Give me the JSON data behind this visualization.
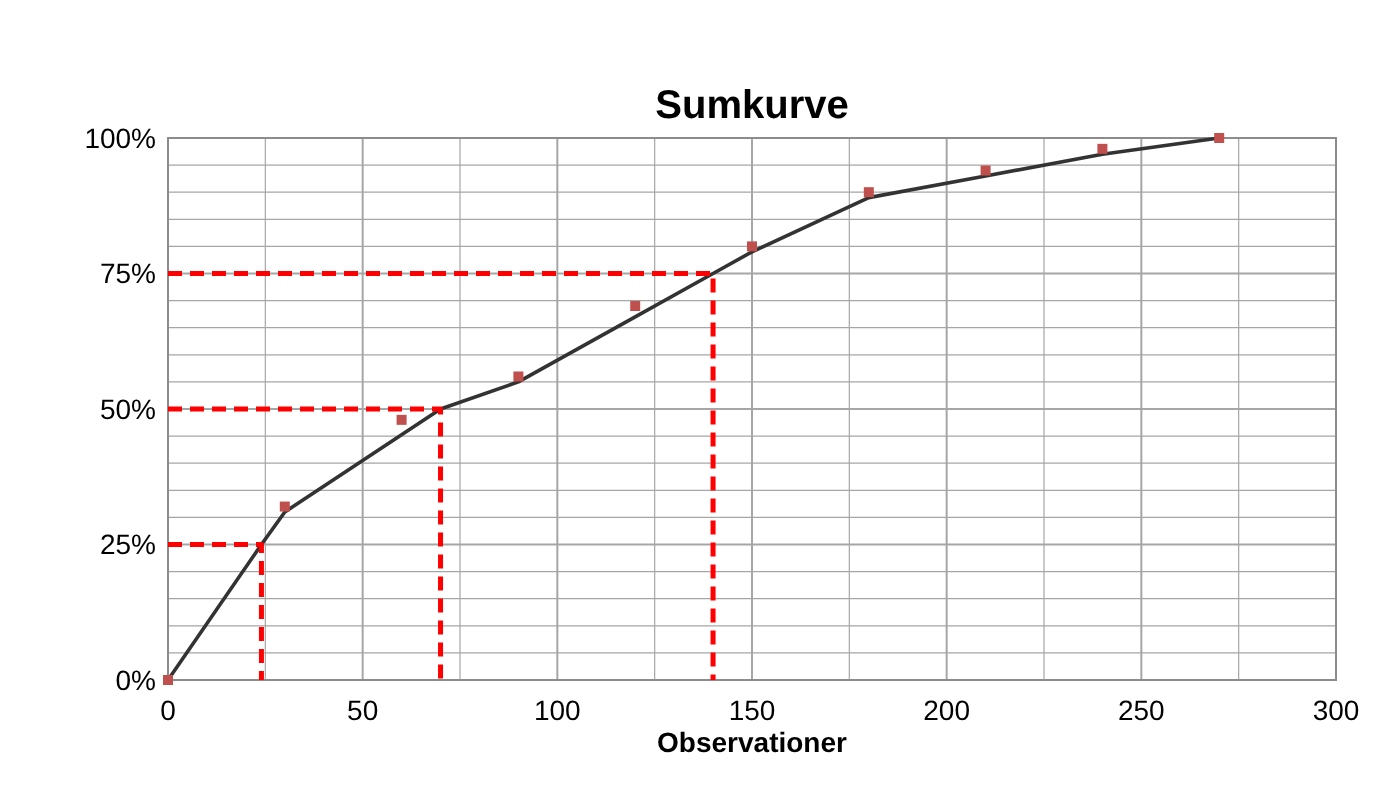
{
  "chart_data": {
    "type": "line",
    "title": "Sumkurve",
    "xlabel": "Observationer",
    "xlim": [
      0,
      300
    ],
    "ylim": [
      0,
      100
    ],
    "xticks": [
      0,
      {
        "value": 25,
        "label": null
      },
      50,
      {
        "value": 75,
        "label": null
      },
      100,
      {
        "value": 125,
        "label": null
      },
      150,
      {
        "value": 175,
        "label": null
      },
      200,
      {
        "value": 225,
        "label": null
      },
      250,
      {
        "value": 275,
        "label": null
      },
      300
    ],
    "yticks": [
      {
        "value": 0,
        "label": "0%"
      },
      {
        "value": 5,
        "label": null
      },
      {
        "value": 10,
        "label": null
      },
      {
        "value": 15,
        "label": null
      },
      {
        "value": 20,
        "label": null
      },
      {
        "value": 25,
        "label": "25%"
      },
      {
        "value": 30,
        "label": null
      },
      {
        "value": 35,
        "label": null
      },
      {
        "value": 40,
        "label": null
      },
      {
        "value": 45,
        "label": null
      },
      {
        "value": 50,
        "label": "50%"
      },
      {
        "value": 55,
        "label": null
      },
      {
        "value": 60,
        "label": null
      },
      {
        "value": 65,
        "label": null
      },
      {
        "value": 70,
        "label": null
      },
      {
        "value": 75,
        "label": "75%"
      },
      {
        "value": 80,
        "label": null
      },
      {
        "value": 85,
        "label": null
      },
      {
        "value": 90,
        "label": null
      },
      {
        "value": 95,
        "label": null
      },
      {
        "value": 100,
        "label": "100%"
      }
    ],
    "grid": true,
    "series": [
      {
        "color": "#333333",
        "marker": "none",
        "line_style": "solid",
        "x": [
          0,
          24,
          30,
          70,
          90,
          120,
          140,
          150,
          180,
          210,
          240,
          270
        ],
        "values": [
          0,
          25,
          31,
          50,
          55,
          67,
          75,
          79,
          89,
          93,
          97,
          100
        ]
      },
      {
        "type": "scatter",
        "color": "#c0504d",
        "marker": "square",
        "x": [
          0,
          30,
          60,
          90,
          120,
          150,
          180,
          210,
          240,
          270
        ],
        "values": [
          0,
          32,
          48,
          56,
          69,
          80,
          90,
          94,
          98,
          100
        ]
      },
      {
        "type": "line",
        "color": "#ff0000",
        "marker": "none",
        "line_style": "dashed",
        "x": [
          0,
          24,
          24
        ],
        "values": [
          25,
          25,
          0
        ]
      },
      {
        "type": "line",
        "color": "#ff0000",
        "marker": "none",
        "line_style": "dashed",
        "x": [
          0,
          70,
          70
        ],
        "values": [
          50,
          50,
          0
        ]
      },
      {
        "type": "line",
        "color": "#ff0000",
        "marker": "none",
        "line_style": "dashed",
        "x": [
          0,
          140,
          140
        ],
        "values": [
          75,
          75,
          0
        ]
      }
    ]
  }
}
